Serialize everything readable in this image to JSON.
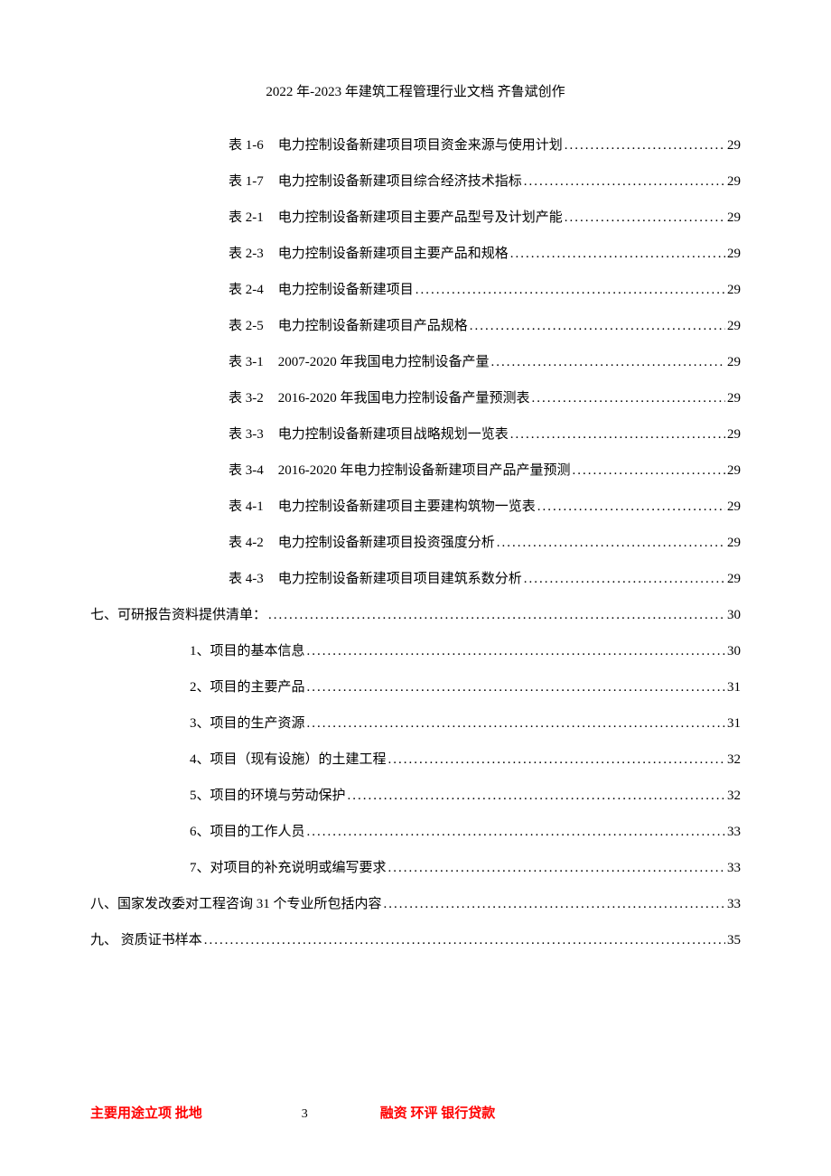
{
  "header": "2022 年-2023 年建筑工程管理行业文档  齐鲁斌创作",
  "dots": "..........................................................................................................................",
  "toc": [
    {
      "type": "table",
      "label": "表 1-6",
      "title": "电力控制设备新建项目项目资金来源与使用计划",
      "page": "29"
    },
    {
      "type": "table",
      "label": "表 1-7",
      "title": "电力控制设备新建项目综合经济技术指标",
      "page": "29"
    },
    {
      "type": "table",
      "label": "表 2-1",
      "title": "电力控制设备新建项目主要产品型号及计划产能",
      "page": "29"
    },
    {
      "type": "table",
      "label": "表 2-3",
      "title": "电力控制设备新建项目主要产品和规格",
      "page": "29"
    },
    {
      "type": "table",
      "label": "表 2-4",
      "title": "电力控制设备新建项目",
      "page": "29"
    },
    {
      "type": "table",
      "label": "表 2-5",
      "title": "电力控制设备新建项目产品规格",
      "page": "29"
    },
    {
      "type": "table",
      "label": "表 3-1",
      "title": "2007-2020 年我国电力控制设备产量 ",
      "page": "29"
    },
    {
      "type": "table",
      "label": "表 3-2",
      "title": "2016-2020 年我国电力控制设备产量预测表 ",
      "page": "29"
    },
    {
      "type": "table",
      "label": "表 3-3",
      "title": "电力控制设备新建项目战略规划一览表",
      "page": "29"
    },
    {
      "type": "table",
      "label": "表 3-4",
      "title": "2016-2020 年电力控制设备新建项目产品产量预测 ",
      "page": "29"
    },
    {
      "type": "table",
      "label": "表 4-1",
      "title": "电力控制设备新建项目主要建构筑物一览表",
      "page": "29"
    },
    {
      "type": "table",
      "label": "表 4-2",
      "title": "电力控制设备新建项目投资强度分析",
      "page": "29"
    },
    {
      "type": "table",
      "label": "表 4-3",
      "title": "电力控制设备新建项目项目建筑系数分析",
      "page": "29"
    },
    {
      "type": "main",
      "label": "",
      "title": "七、可研报告资料提供清单：",
      "page": "30"
    },
    {
      "type": "sub",
      "label": "",
      "title": "1、项目的基本信息 ",
      "page": "30"
    },
    {
      "type": "sub",
      "label": "",
      "title": "2、项目的主要产品 ",
      "page": "31"
    },
    {
      "type": "sub",
      "label": "",
      "title": "3、项目的生产资源 ",
      "page": "31"
    },
    {
      "type": "sub",
      "label": "",
      "title": "4、项目（现有设施）的土建工程 ",
      "page": "32"
    },
    {
      "type": "sub",
      "label": "",
      "title": "5、项目的环境与劳动保护 ",
      "page": "32"
    },
    {
      "type": "sub",
      "label": "",
      "title": "6、项目的工作人员 ",
      "page": "33"
    },
    {
      "type": "sub",
      "label": "",
      "title": "7、对项目的补充说明或编写要求 ",
      "page": "33"
    },
    {
      "type": "main",
      "label": "",
      "title": "八、国家发改委对工程咨询 31 个专业所包括内容 ",
      "page": "33"
    },
    {
      "type": "main",
      "label": "",
      "title": "九、  资质证书样本 ",
      "page": "35"
    }
  ],
  "footer": {
    "left": "主要用途立项    批地",
    "pagenum": "3",
    "right": "融资    环评    银行贷款"
  }
}
